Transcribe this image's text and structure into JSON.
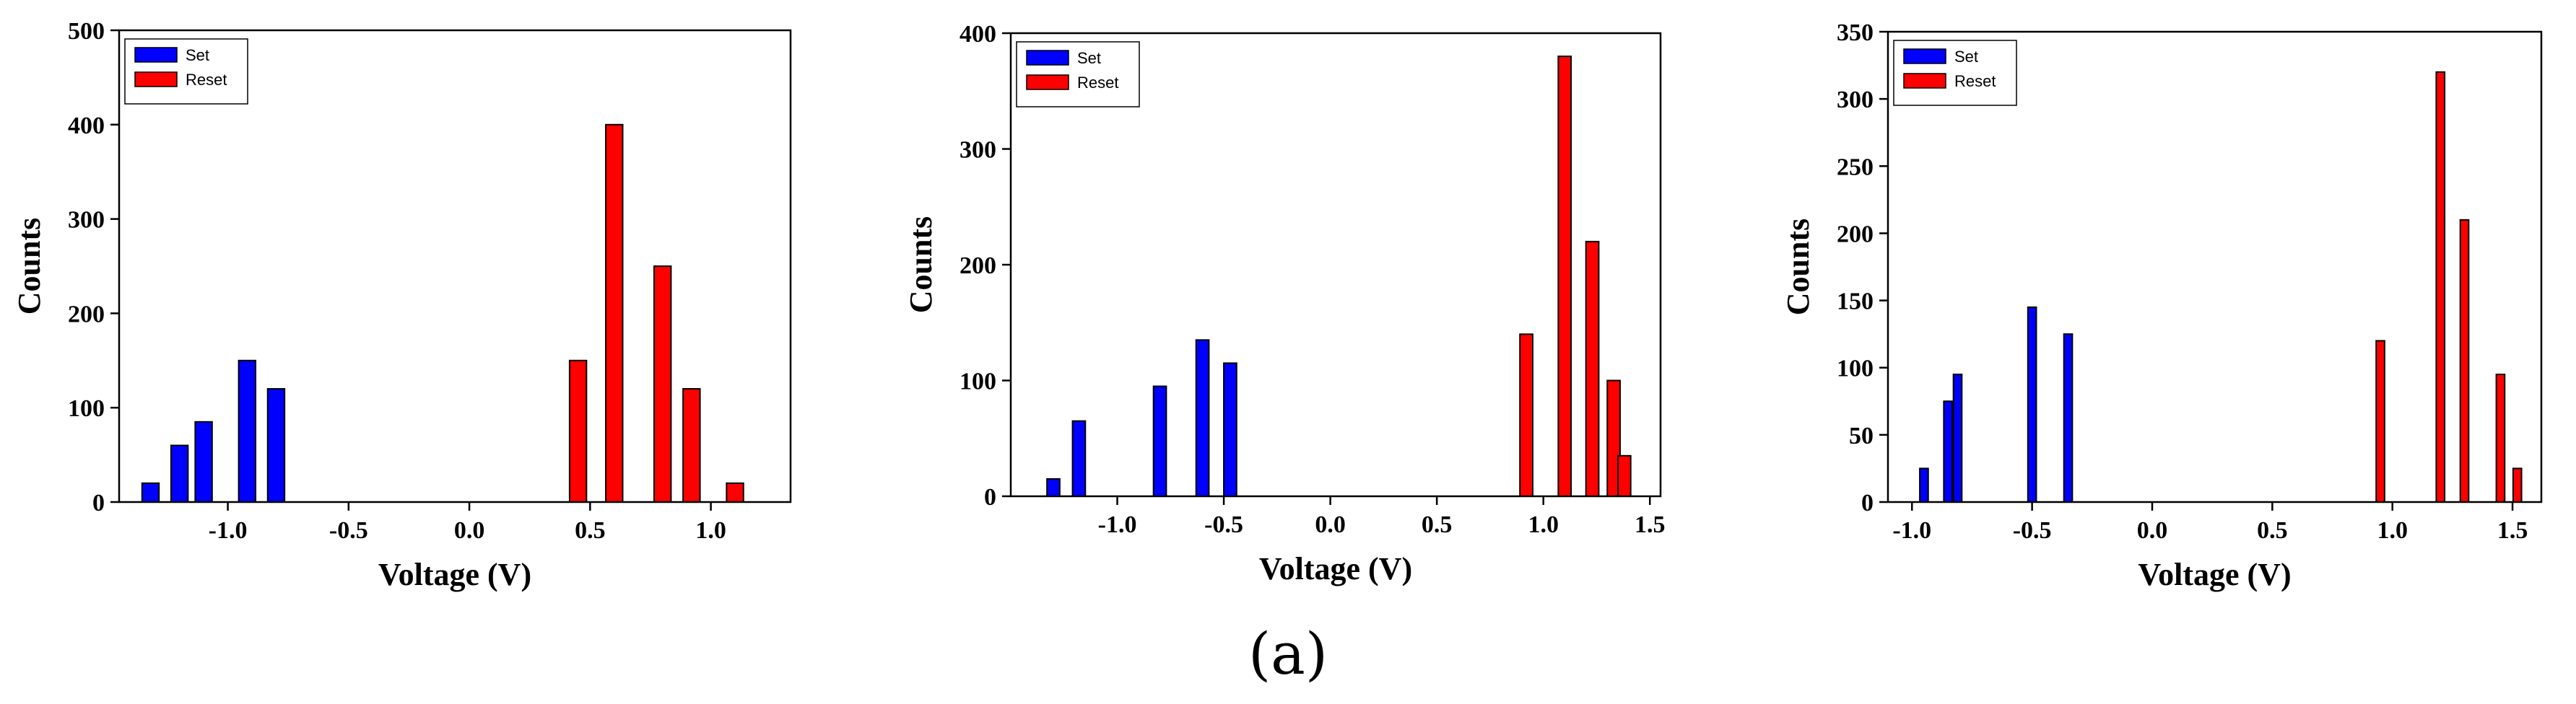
{
  "caption": "(a)",
  "chart_data": [
    {
      "type": "bar",
      "xlabel": "Voltage (V)",
      "ylabel": "Counts",
      "xlim": [
        -1.45,
        1.33
      ],
      "ylim": [
        0,
        500
      ],
      "xticks": [
        "-1.0",
        "-0.5",
        "0.0",
        "0.5",
        "1.0"
      ],
      "yticks": [
        "0",
        "100",
        "200",
        "300",
        "400",
        "500"
      ],
      "bar_width": 0.07,
      "legend": {
        "position": "top-left",
        "entries": [
          "Set",
          "Reset"
        ]
      },
      "series": [
        {
          "name": "Set",
          "color": "#0000ff",
          "points": [
            {
              "x": -1.32,
              "y": 20
            },
            {
              "x": -1.2,
              "y": 60
            },
            {
              "x": -1.1,
              "y": 85
            },
            {
              "x": -0.92,
              "y": 150
            },
            {
              "x": -0.8,
              "y": 120
            }
          ]
        },
        {
          "name": "Reset",
          "color": "#ff0000",
          "points": [
            {
              "x": 0.45,
              "y": 150
            },
            {
              "x": 0.6,
              "y": 400
            },
            {
              "x": 0.8,
              "y": 250
            },
            {
              "x": 0.92,
              "y": 120
            },
            {
              "x": 1.1,
              "y": 20
            }
          ]
        }
      ]
    },
    {
      "type": "bar",
      "xlabel": "Voltage (V)",
      "ylabel": "Counts",
      "xlim": [
        -1.5,
        1.55
      ],
      "ylim": [
        0,
        400
      ],
      "xticks": [
        "-1.0",
        "-0.5",
        "0.0",
        "0.5",
        "1.0",
        "1.5"
      ],
      "yticks": [
        "0",
        "100",
        "200",
        "300",
        "400"
      ],
      "bar_width": 0.06,
      "legend": {
        "position": "top-left",
        "entries": [
          "Set",
          "Reset"
        ]
      },
      "series": [
        {
          "name": "Set",
          "color": "#0000ff",
          "points": [
            {
              "x": -1.3,
              "y": 15
            },
            {
              "x": -1.18,
              "y": 65
            },
            {
              "x": -0.8,
              "y": 95
            },
            {
              "x": -0.6,
              "y": 135
            },
            {
              "x": -0.47,
              "y": 115
            }
          ]
        },
        {
          "name": "Reset",
          "color": "#ff0000",
          "points": [
            {
              "x": 0.92,
              "y": 140
            },
            {
              "x": 1.1,
              "y": 380
            },
            {
              "x": 1.23,
              "y": 220
            },
            {
              "x": 1.33,
              "y": 100
            },
            {
              "x": 1.38,
              "y": 35
            }
          ]
        }
      ]
    },
    {
      "type": "bar",
      "xlabel": "Voltage (V)",
      "ylabel": "Counts",
      "xlim": [
        -1.1,
        1.62
      ],
      "ylim": [
        0,
        350
      ],
      "xticks": [
        "-1.0",
        "-0.5",
        "0.0",
        "0.5",
        "1.0",
        "1.5"
      ],
      "yticks": [
        "0",
        "50",
        "100",
        "150",
        "200",
        "250",
        "300",
        "350"
      ],
      "bar_width": 0.035,
      "legend": {
        "position": "top-left",
        "entries": [
          "Set",
          "Reset"
        ]
      },
      "series": [
        {
          "name": "Set",
          "color": "#0000ff",
          "points": [
            {
              "x": -0.95,
              "y": 25
            },
            {
              "x": -0.85,
              "y": 75
            },
            {
              "x": -0.81,
              "y": 95
            },
            {
              "x": -0.5,
              "y": 145
            },
            {
              "x": -0.35,
              "y": 125
            }
          ]
        },
        {
          "name": "Reset",
          "color": "#ff0000",
          "points": [
            {
              "x": 0.95,
              "y": 120
            },
            {
              "x": 1.2,
              "y": 320
            },
            {
              "x": 1.3,
              "y": 210
            },
            {
              "x": 1.45,
              "y": 95
            },
            {
              "x": 1.52,
              "y": 25
            }
          ]
        }
      ]
    }
  ]
}
